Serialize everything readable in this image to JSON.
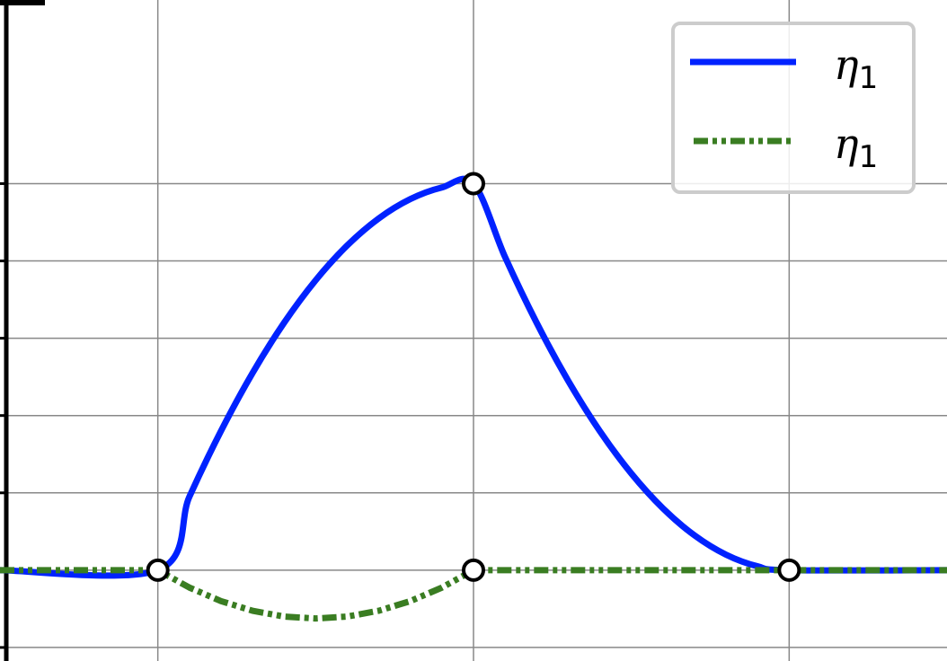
{
  "chart_data": {
    "type": "line",
    "title": "",
    "xlabel": "",
    "ylabel": "",
    "xlim": [
      -0.5,
      2.5
    ],
    "ylim": [
      -0.47,
      2.95
    ],
    "xgrid": [
      0,
      1,
      2
    ],
    "ygrid": [
      -0.4,
      0,
      0.4,
      0.8,
      1.2,
      1.6,
      2.0
    ],
    "grid": true,
    "legend_position": "top-right",
    "series": [
      {
        "name": "η1",
        "label_base": "η",
        "label_sub": "1",
        "color": "#0022ff",
        "style": "solid",
        "x": [
          -0.5,
          0,
          0.1,
          0.2,
          0.3,
          0.4,
          0.5,
          0.6,
          0.7,
          0.8,
          0.9,
          1.0,
          1.1,
          1.2,
          1.3,
          1.4,
          1.5,
          1.6,
          1.7,
          1.8,
          1.9,
          2.0,
          2.5
        ],
        "y": [
          0,
          0,
          0.38,
          0.72,
          1.02,
          1.28,
          1.5,
          1.68,
          1.82,
          1.92,
          1.98,
          2.0,
          1.62,
          1.28,
          0.98,
          0.72,
          0.5,
          0.32,
          0.18,
          0.08,
          0.02,
          0,
          0
        ]
      },
      {
        "name": "η1",
        "label_base": "η",
        "label_sub": "1",
        "color": "#3a7d22",
        "style": "dash-dot-dot",
        "x": [
          -0.5,
          0,
          0.1,
          0.2,
          0.3,
          0.4,
          0.5,
          0.6,
          0.7,
          0.8,
          0.9,
          1.0,
          2.0,
          2.5
        ],
        "y": [
          0,
          0,
          -0.09,
          -0.16,
          -0.21,
          -0.24,
          -0.25,
          -0.24,
          -0.21,
          -0.16,
          -0.09,
          0,
          0,
          0
        ]
      }
    ],
    "markers": {
      "x": [
        0,
        1,
        1,
        2
      ],
      "y": [
        0,
        2.0,
        0,
        0
      ]
    }
  }
}
